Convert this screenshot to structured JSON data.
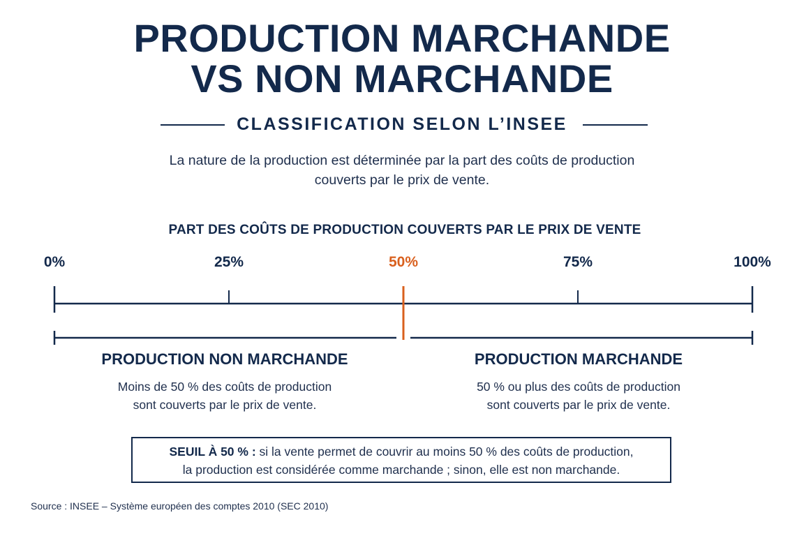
{
  "title": {
    "line1": "PRODUCTION MARCHANDE",
    "line2": "VS NON MARCHANDE"
  },
  "subtitle": "CLASSIFICATION SELON L’INSEE",
  "intro": {
    "line1": "La nature de la production est déterminée par la part des coûts de production",
    "line2": "couverts par le prix de vente."
  },
  "scale": {
    "title": "PART DES COÛTS DE PRODUCTION COUVERTS PAR LE PRIX DE VENTE",
    "ticks": [
      {
        "label": "0%",
        "value": 0
      },
      {
        "label": "25%",
        "value": 25
      },
      {
        "label": "50%",
        "value": 50,
        "highlight": true
      },
      {
        "label": "75%",
        "value": 75
      },
      {
        "label": "100%",
        "value": 100
      }
    ],
    "threshold_value": 50
  },
  "categories": {
    "non_market": {
      "title": "PRODUCTION NON MARCHANDE",
      "desc_line1": "Moins de 50 % des coûts de production",
      "desc_line2": "sont couverts par le prix de vente."
    },
    "market": {
      "title": "PRODUCTION MARCHANDE",
      "desc_line1": "50 % ou plus des coûts de production",
      "desc_line2": "sont couverts par le prix de vente."
    }
  },
  "threshold_note": {
    "label": "SEUIL À 50 % :",
    "line1_rest": " si la vente permet de couvrir au moins 50 % des coûts de production,",
    "line2": "la production est considérée comme marchande ; sinon, elle est non marchande."
  },
  "source": "Source : INSEE – Système européen des comptes 2010 (SEC 2010)",
  "colors": {
    "navy": "#13294b",
    "accent": "#d9601e",
    "text": "#1f2f4d"
  }
}
